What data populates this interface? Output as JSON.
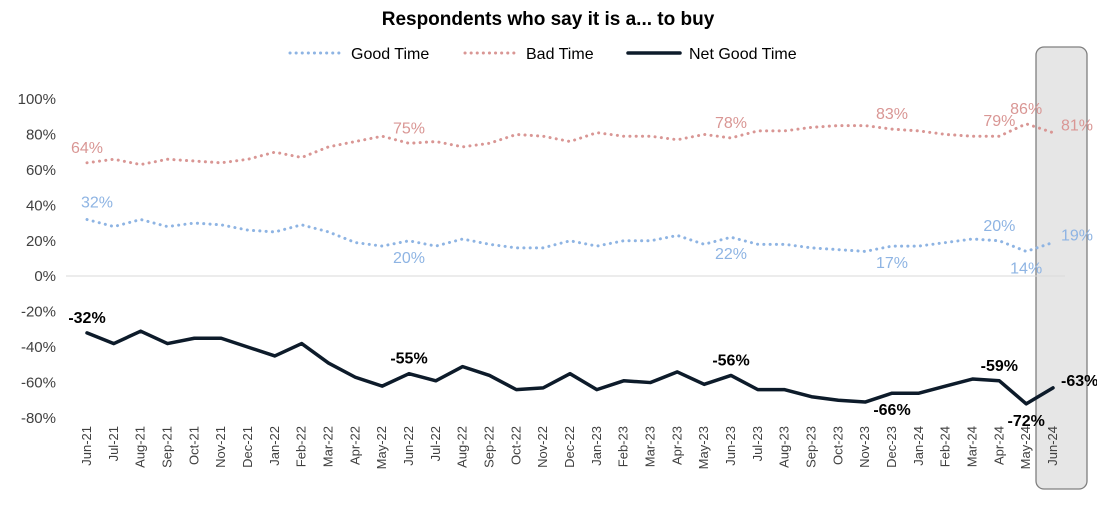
{
  "chart_data": {
    "type": "line",
    "title": "Respondents who say it is a... to buy",
    "xlabel": "",
    "ylabel": "",
    "ylim": [
      -80,
      100
    ],
    "yticks": [
      100,
      80,
      60,
      40,
      20,
      0,
      -20,
      -40,
      -60,
      -80
    ],
    "ytick_labels": [
      "100%",
      "80%",
      "60%",
      "40%",
      "20%",
      "0%",
      "-20%",
      "-40%",
      "-60%",
      "-80%"
    ],
    "legend_position": "top-center",
    "grid": false,
    "highlight_category": "Jun-24",
    "categories": [
      "Jun-21",
      "Jul-21",
      "Aug-21",
      "Sep-21",
      "Oct-21",
      "Nov-21",
      "Dec-21",
      "Jan-22",
      "Feb-22",
      "Mar-22",
      "Apr-22",
      "May-22",
      "Jun-22",
      "Jul-22",
      "Aug-22",
      "Sep-22",
      "Oct-22",
      "Nov-22",
      "Dec-22",
      "Jan-23",
      "Feb-23",
      "Mar-23",
      "Apr-23",
      "May-23",
      "Jun-23",
      "Jul-23",
      "Aug-23",
      "Sep-23",
      "Oct-23",
      "Nov-23",
      "Dec-23",
      "Jan-24",
      "Feb-24",
      "Mar-24",
      "Apr-24",
      "May-24",
      "Jun-24"
    ],
    "series": [
      {
        "name": "Good Time",
        "color": "#8EB4E3",
        "style": "dotted",
        "values": [
          32,
          28,
          32,
          28,
          30,
          29,
          26,
          25,
          29,
          25,
          19,
          17,
          20,
          17,
          21,
          18,
          16,
          16,
          20,
          17,
          20,
          20,
          23,
          18,
          22,
          18,
          18,
          16,
          15,
          14,
          17,
          17,
          19,
          21,
          20,
          14,
          19
        ],
        "labels": [
          {
            "index": 0,
            "text": "32%",
            "pos": "above"
          },
          {
            "index": 12,
            "text": "20%",
            "pos": "below"
          },
          {
            "index": 24,
            "text": "22%",
            "pos": "below"
          },
          {
            "index": 30,
            "text": "17%",
            "pos": "below"
          },
          {
            "index": 34,
            "text": "20%",
            "pos": "above"
          },
          {
            "index": 35,
            "text": "14%",
            "pos": "below"
          },
          {
            "index": 36,
            "text": "19%",
            "pos": "right"
          }
        ]
      },
      {
        "name": "Bad Time",
        "color": "#D99694",
        "style": "dotted",
        "values": [
          64,
          66,
          63,
          66,
          65,
          64,
          66,
          70,
          67,
          73,
          76,
          79,
          75,
          76,
          73,
          75,
          80,
          79,
          76,
          81,
          79,
          79,
          77,
          80,
          78,
          82,
          82,
          84,
          85,
          85,
          83,
          82,
          80,
          79,
          79,
          86,
          81
        ],
        "labels": [
          {
            "index": 0,
            "text": "64%",
            "pos": "above"
          },
          {
            "index": 12,
            "text": "75%",
            "pos": "above"
          },
          {
            "index": 24,
            "text": "78%",
            "pos": "above"
          },
          {
            "index": 30,
            "text": "83%",
            "pos": "above"
          },
          {
            "index": 34,
            "text": "79%",
            "pos": "above"
          },
          {
            "index": 35,
            "text": "86%",
            "pos": "above"
          },
          {
            "index": 36,
            "text": "81%",
            "pos": "right"
          }
        ]
      },
      {
        "name": "Net Good Time",
        "color": "#0D1B2A",
        "style": "solid",
        "values": [
          -32,
          -38,
          -31,
          -38,
          -35,
          -35,
          -40,
          -45,
          -38,
          -49,
          -57,
          -62,
          -55,
          -59,
          -51,
          -56,
          -64,
          -63,
          -55,
          -64,
          -59,
          -60,
          -54,
          -61,
          -56,
          -64,
          -64,
          -68,
          -70,
          -71,
          -66,
          -66,
          -62,
          -58,
          -59,
          -72,
          -63
        ],
        "labels": [
          {
            "index": 0,
            "text": "-32%",
            "pos": "above"
          },
          {
            "index": 12,
            "text": "-55%",
            "pos": "above"
          },
          {
            "index": 24,
            "text": "-56%",
            "pos": "above"
          },
          {
            "index": 30,
            "text": "-66%",
            "pos": "below"
          },
          {
            "index": 34,
            "text": "-59%",
            "pos": "above"
          },
          {
            "index": 35,
            "text": "-72%",
            "pos": "below"
          },
          {
            "index": 36,
            "text": "-63%",
            "pos": "right"
          }
        ]
      }
    ]
  }
}
